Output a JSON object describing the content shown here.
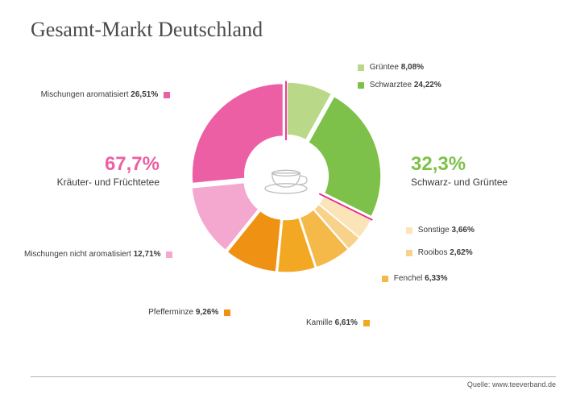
{
  "title": "Gesamt-Markt Deutschland",
  "chart": {
    "type": "donut",
    "outer_radius": 130,
    "inner_radius": 55,
    "explode_gap": 6,
    "rotation_start_deg": -90,
    "background_color": "#ffffff",
    "center_icon": "teacup",
    "center_icon_stroke": "#bdbdbd",
    "divider": {
      "at_cumulative_pct": 32.3,
      "stroke": "#e91e8e",
      "width": 2
    },
    "slices": [
      {
        "key": "gruentee",
        "label": "Grüntee",
        "value": 8.08,
        "value_text": "8,08%",
        "color": "#b9d989",
        "group": "right",
        "label_side": "right"
      },
      {
        "key": "schwarztee",
        "label": "Schwarztee",
        "value": 24.22,
        "value_text": "24,22%",
        "color": "#7ec14a",
        "group": "right",
        "label_side": "right"
      },
      {
        "key": "sonstige",
        "label": "Sonstige",
        "value": 3.66,
        "value_text": "3,66%",
        "color": "#fbe5b8",
        "group": "left",
        "label_side": "right"
      },
      {
        "key": "rooibos",
        "label": "Rooibos",
        "value": 2.62,
        "value_text": "2,62%",
        "color": "#f8d18a",
        "group": "left",
        "label_side": "right"
      },
      {
        "key": "fenchel",
        "label": "Fenchel",
        "value": 6.33,
        "value_text": "6,33%",
        "color": "#f5b94a",
        "group": "left",
        "label_side": "right"
      },
      {
        "key": "kamille",
        "label": "Kamille",
        "value": 6.61,
        "value_text": "6,61%",
        "color": "#f3a823",
        "group": "left",
        "label_side": "bottom"
      },
      {
        "key": "pfefferminze",
        "label": "Pfefferminze",
        "value": 9.26,
        "value_text": "9,26%",
        "color": "#ef9214",
        "group": "left",
        "label_side": "left"
      },
      {
        "key": "misch_nicht",
        "label": "Mischungen nicht aromatisiert",
        "value": 12.71,
        "value_text": "12,71%",
        "color": "#f5a8cf",
        "group": "left",
        "label_side": "left"
      },
      {
        "key": "misch_arom",
        "label": "Mischungen aromatisiert",
        "value": 26.51,
        "value_text": "26,51%",
        "color": "#ec5fa4",
        "group": "left",
        "label_side": "left"
      }
    ],
    "group_labels": {
      "right": {
        "pct_text": "32,3%",
        "name": "Schwarz- und Grüntee",
        "color": "#7ec14a"
      },
      "left": {
        "pct_text": "67,7%",
        "name": "Kräuter- und Früchtetee",
        "color": "#ec5fa4"
      }
    }
  },
  "source": {
    "prefix": "Quelle: ",
    "text": "www.teeverband.de"
  },
  "typography": {
    "title_fontsize": 26,
    "title_weight": 300,
    "slice_label_fontsize": 10,
    "group_pct_fontsize": 24,
    "group_name_fontsize": 12,
    "source_fontsize": 9
  }
}
